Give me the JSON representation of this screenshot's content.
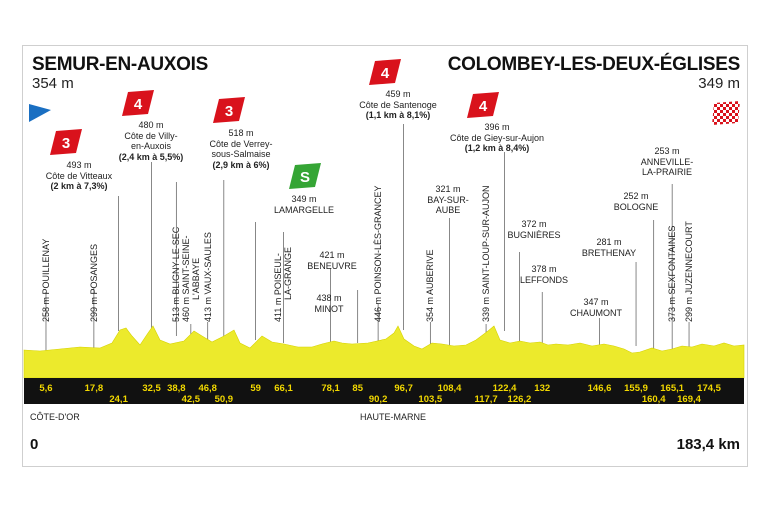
{
  "start": {
    "city": "SEMUR-EN-AUXOIS",
    "altitude": "354 m"
  },
  "finish": {
    "city": "COLOMBEY-LES-DEUX-ÉGLISES",
    "altitude": "349 m"
  },
  "distance": {
    "start_label": "0",
    "end_label": "183,4 km",
    "total_km": 183.4
  },
  "departments": [
    "CÔTE-D'OR",
    "HAUTE-MARNE"
  ],
  "colors": {
    "profile": "#ecea2c",
    "band": "#111111",
    "km_text": "#f2d800",
    "climb": "#d9121c",
    "sprint": "#35a535",
    "start_flag": "#1a6fc2"
  },
  "climbs": [
    {
      "cat": "3",
      "alt": "493 m",
      "name": "Côte de Vitteaux",
      "stats": "(2 km à 7,3%)",
      "km": 24.1
    },
    {
      "cat": "4",
      "alt": "480 m",
      "name": "Côte de Villy-en-Auxois",
      "name_lines": [
        "Côte de Villy-",
        "en-Auxois"
      ],
      "stats": "(2,4 km à 5,5%)",
      "km": 32.5
    },
    {
      "cat": "3",
      "alt": "518 m",
      "name": "Côte de Verrey-sous-Salmaise",
      "name_lines": [
        "Côte de Verrey-",
        "sous-Salmaise"
      ],
      "stats": "(2,9 km à 6%)",
      "km": 50.9
    },
    {
      "cat": "4",
      "alt": "459 m",
      "name": "Côte de Santenoge",
      "stats": "(1,1 km à 8,1%)",
      "km": 96.7
    },
    {
      "cat": "4",
      "alt": "396 m",
      "name": "Côte de Giey-sur-Aujon",
      "stats": "(1,2 km à 8,4%)",
      "km": 122.4
    }
  ],
  "sprint": {
    "label": "S",
    "alt": "349 m",
    "name": "LAMARGELLE",
    "km": 59
  },
  "places": [
    {
      "km": 5.6,
      "text": "258 m POUILLENAY"
    },
    {
      "km": 17.8,
      "text": "299 m POSANGES"
    },
    {
      "km": 38.8,
      "text": "513 m BLIGNY-LE-SEC"
    },
    {
      "km": 42.5,
      "text": "460 m SAINT-SEINE-",
      "text2": "L'ABBAYE"
    },
    {
      "km": 46.8,
      "text": "413 m VAUX-SAULES"
    },
    {
      "km": 66.1,
      "text": "411 m POISEUL-",
      "text2": "LA-GRANGE"
    },
    {
      "km": 90.2,
      "text": "446 m POINSON-LÈS-GRANCEY"
    },
    {
      "km": 103.5,
      "text": "354 m AUBERIVE"
    },
    {
      "km": 117.7,
      "text": "339 m SAINT-LOUP-SUR-AUJON"
    },
    {
      "km": 165.1,
      "text": "373 m SEXFONTAINES"
    },
    {
      "km": 169.4,
      "text": "299 m JUZENNECOURT"
    }
  ],
  "points": [
    {
      "km": 78.1,
      "alt": "421 m",
      "name": "BENEUVRE"
    },
    {
      "km": 85,
      "alt": "438 m",
      "name": "MINOT"
    },
    {
      "km": 108.4,
      "alt": "321 m",
      "name": "BAY-SUR-AUBE",
      "name_lines": [
        "BAY-SUR-",
        "AUBE"
      ]
    },
    {
      "km": 126.2,
      "alt": "372 m",
      "name": "BUGNIÈRES"
    },
    {
      "km": 132,
      "alt": "378 m",
      "name": "LEFFONDS"
    },
    {
      "km": 146.6,
      "alt": "347 m",
      "name": "CHAUMONT"
    },
    {
      "km": 155.9,
      "alt": "281 m",
      "name": "BRETHENAY"
    },
    {
      "km": 160.4,
      "alt": "252 m",
      "name": "BOLOGNE"
    },
    {
      "km": 165.1,
      "alt": "253 m",
      "name": "ANNEVILLE-LA-PRAIRIE",
      "name_lines": [
        "ANNEVILLE-",
        "LA-PRAIRIE"
      ]
    }
  ],
  "km_top": [
    "5,6",
    "17,8",
    "32,5",
    "38,8",
    "46,8",
    "59",
    "66,1",
    "78,1",
    "85",
    "96,7",
    "108,4",
    "122,4",
    "132",
    "146,6",
    "155,9",
    "165,1",
    "174,5"
  ],
  "km_bottom": [
    "24,1",
    "42,5",
    "50,9",
    "90,2",
    "103,5",
    "117,7",
    "126,2",
    "160,4",
    "169,4"
  ]
}
